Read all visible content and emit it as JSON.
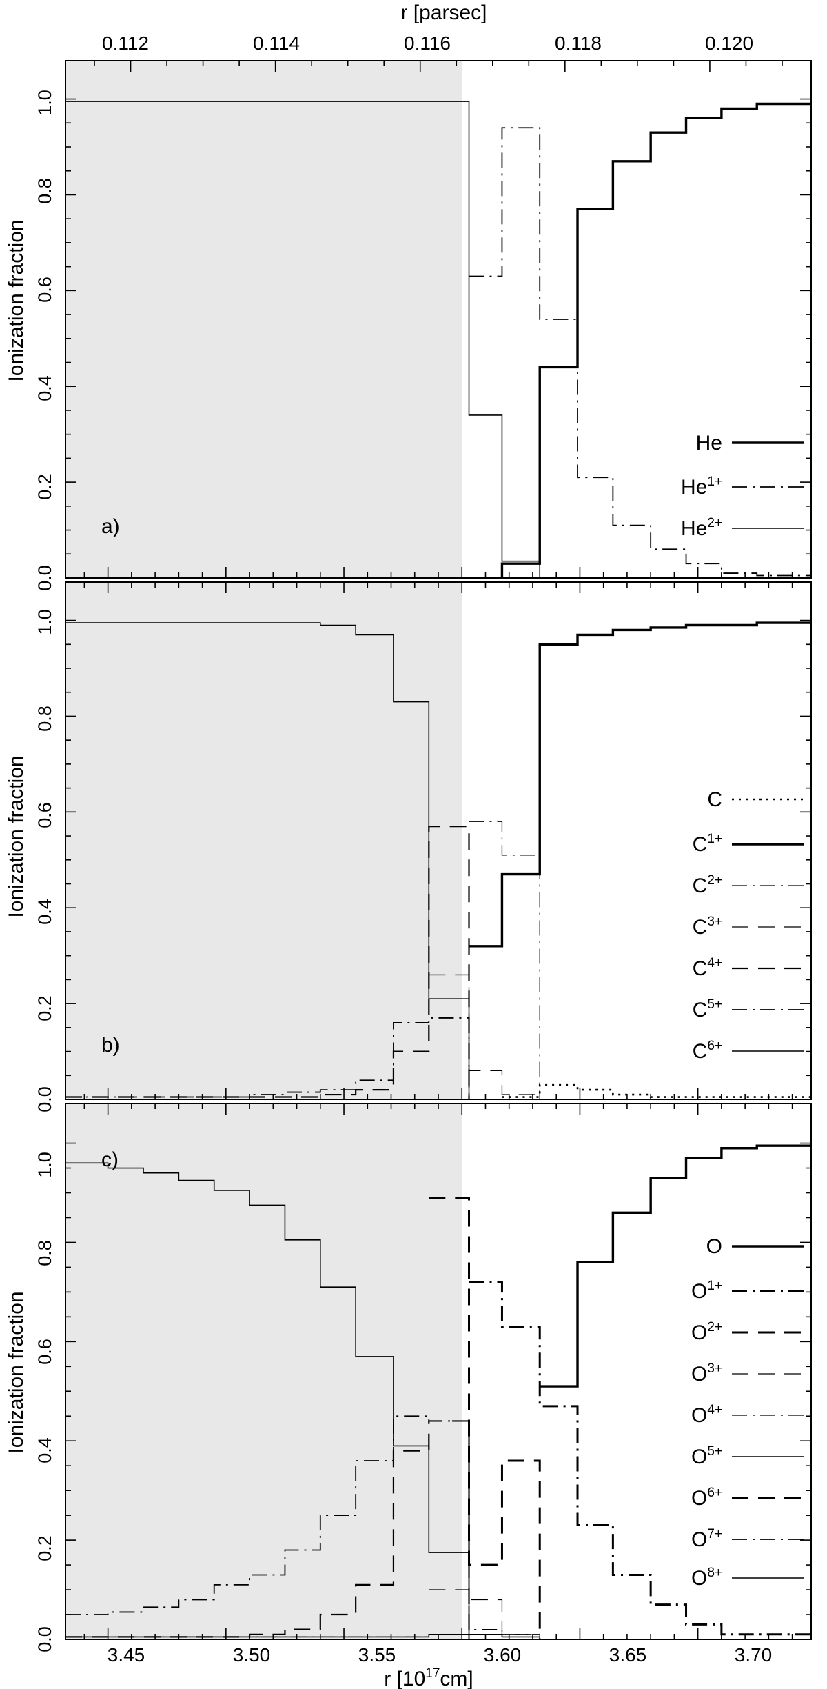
{
  "figure": {
    "top_axis_label": "r [parsec]",
    "top_ticks": [
      "0.112",
      "0.114",
      "0.116",
      "0.118",
      "0.120"
    ],
    "bottom_axis_label_main": "r [10",
    "bottom_axis_label_sup": "17",
    "bottom_axis_label_tail": "cm]",
    "bottom_ticks": [
      "3.45",
      "3.50",
      "3.55",
      "3.60",
      "3.65",
      "3.70"
    ],
    "y_label": "Ionization fraction",
    "y_ticks": [
      "0.0",
      "0.2",
      "0.4",
      "0.6",
      "0.8",
      "1.0"
    ],
    "shade_color": "#e8e8e8"
  },
  "chart_data": [
    {
      "type": "line",
      "panel_label": "a)",
      "xlabel": "r [10^17 cm]",
      "ylabel": "Ionization fraction",
      "x_top_label": "r [parsec]",
      "xlim": [
        3.432,
        3.748
      ],
      "ylim": [
        0.0,
        1.08
      ],
      "shaded_region": [
        3.432,
        3.6
      ],
      "legend_position": "bottom-right",
      "series": [
        {
          "base": "He",
          "sup": "",
          "style": "solid-thick",
          "x": [
            3.603,
            3.617,
            3.633,
            3.649,
            3.664,
            3.68,
            3.695,
            3.71,
            3.725,
            3.748
          ],
          "y": [
            0.0,
            0.03,
            0.44,
            0.77,
            0.87,
            0.93,
            0.96,
            0.98,
            0.99,
            0.99
          ]
        },
        {
          "base": "He",
          "sup": "1+",
          "style": "dashdot",
          "x": [
            3.603,
            3.617,
            3.633,
            3.649,
            3.664,
            3.68,
            3.695,
            3.71,
            3.725,
            3.748
          ],
          "y": [
            0.63,
            0.94,
            0.54,
            0.21,
            0.11,
            0.06,
            0.03,
            0.01,
            0.005,
            0.005
          ]
        },
        {
          "base": "He",
          "sup": "2+",
          "style": "solid-thin",
          "x": [
            3.432,
            3.603,
            3.617,
            3.633
          ],
          "y": [
            0.995,
            0.34,
            0.035,
            0.0
          ]
        }
      ]
    },
    {
      "type": "line",
      "panel_label": "b)",
      "xlabel": "r [10^17 cm]",
      "ylabel": "Ionization fraction",
      "x_top_label": "r [parsec]",
      "xlim": [
        3.432,
        3.748
      ],
      "ylim": [
        0.0,
        1.08
      ],
      "shaded_region": [
        3.432,
        3.6
      ],
      "legend_position": "middle-right",
      "series": [
        {
          "base": "C",
          "sup": "",
          "style": "dotted",
          "x": [
            3.617,
            3.633,
            3.649,
            3.664,
            3.68,
            3.748
          ],
          "y": [
            0.005,
            0.03,
            0.02,
            0.01,
            0.005,
            0.005
          ]
        },
        {
          "base": "C",
          "sup": "1+",
          "style": "solid-thick",
          "x": [
            3.603,
            3.617,
            3.633,
            3.649,
            3.664,
            3.68,
            3.695,
            3.71,
            3.725,
            3.748
          ],
          "y": [
            0.32,
            0.47,
            0.95,
            0.97,
            0.98,
            0.985,
            0.99,
            0.99,
            0.995,
            0.995
          ]
        },
        {
          "base": "C",
          "sup": "2+",
          "style": "dashdot-thin",
          "x": [
            3.603,
            3.617,
            3.633,
            3.748
          ],
          "y": [
            0.58,
            0.51,
            0.0,
            0.0
          ]
        },
        {
          "base": "C",
          "sup": "3+",
          "style": "dashed-thin",
          "x": [
            3.586,
            3.603,
            3.617,
            3.633
          ],
          "y": [
            0.26,
            0.06,
            0.01,
            0.0
          ]
        },
        {
          "base": "C",
          "sup": "4+",
          "style": "dashed",
          "x": [
            3.432,
            3.54,
            3.555,
            3.571,
            3.586,
            3.603
          ],
          "y": [
            0.005,
            0.01,
            0.02,
            0.1,
            0.57,
            0.0
          ]
        },
        {
          "base": "C",
          "sup": "5+",
          "style": "dashdot",
          "x": [
            3.432,
            3.51,
            3.525,
            3.54,
            3.555,
            3.571,
            3.586,
            3.603
          ],
          "y": [
            0.005,
            0.01,
            0.015,
            0.02,
            0.04,
            0.16,
            0.17,
            0.0
          ]
        },
        {
          "base": "C",
          "sup": "6+",
          "style": "solid-thin",
          "x": [
            3.432,
            3.54,
            3.555,
            3.571,
            3.586,
            3.603
          ],
          "y": [
            0.995,
            0.99,
            0.97,
            0.83,
            0.21,
            0.0
          ]
        }
      ]
    },
    {
      "type": "line",
      "panel_label": "c)",
      "xlabel": "r [10^17 cm]",
      "ylabel": "Ionization fraction",
      "x_top_label": "r [parsec]",
      "xlim": [
        3.432,
        3.748
      ],
      "ylim": [
        0.0,
        1.08
      ],
      "shaded_region": [
        3.432,
        3.6
      ],
      "legend_position": "right",
      "series": [
        {
          "base": "O",
          "sup": "",
          "style": "solid-thick",
          "x": [
            3.633,
            3.649,
            3.664,
            3.68,
            3.695,
            3.71,
            3.725,
            3.748
          ],
          "y": [
            0.51,
            0.76,
            0.86,
            0.93,
            0.97,
            0.99,
            0.995,
            0.995
          ]
        },
        {
          "base": "O",
          "sup": "1+",
          "style": "dashdot-thick",
          "x": [
            3.603,
            3.617,
            3.633,
            3.649,
            3.664,
            3.68,
            3.695,
            3.71,
            3.748
          ],
          "y": [
            0.72,
            0.63,
            0.47,
            0.23,
            0.13,
            0.07,
            0.03,
            0.01,
            0.01
          ]
        },
        {
          "base": "O",
          "sup": "2+",
          "style": "dashed-thick",
          "x": [
            3.586,
            3.603,
            3.617,
            3.633
          ],
          "y": [
            0.89,
            0.15,
            0.36,
            0.0
          ]
        },
        {
          "base": "O",
          "sup": "3+",
          "style": "dashed-thin",
          "x": [
            3.586,
            3.603,
            3.617,
            3.633
          ],
          "y": [
            0.1,
            0.08,
            0.01,
            0.0
          ]
        },
        {
          "base": "O",
          "sup": "4+",
          "style": "dashdot-thin",
          "x": [
            3.432,
            3.586,
            3.603,
            3.617,
            3.633
          ],
          "y": [
            0.005,
            0.01,
            0.02,
            0.01,
            0.0
          ]
        },
        {
          "base": "O",
          "sup": "5+",
          "style": "solid-thin",
          "x": [
            3.432,
            3.586,
            3.603,
            3.617,
            3.633
          ],
          "y": [
            0.005,
            0.01,
            0.01,
            0.005,
            0.0
          ]
        },
        {
          "base": "O",
          "sup": "6+",
          "style": "dashed",
          "x": [
            3.432,
            3.48,
            3.51,
            3.525,
            3.54,
            3.555,
            3.571,
            3.586,
            3.603
          ],
          "y": [
            0.005,
            0.005,
            0.01,
            0.02,
            0.05,
            0.11,
            0.38,
            0.44,
            0.0
          ]
        },
        {
          "base": "O",
          "sup": "7+",
          "style": "dashdot",
          "x": [
            3.432,
            3.45,
            3.465,
            3.48,
            3.495,
            3.51,
            3.525,
            3.54,
            3.555,
            3.571,
            3.586,
            3.603
          ],
          "y": [
            0.05,
            0.055,
            0.065,
            0.08,
            0.11,
            0.13,
            0.18,
            0.25,
            0.36,
            0.45,
            0.44,
            0.0
          ]
        },
        {
          "base": "O",
          "sup": "8+",
          "style": "solid-thin",
          "x": [
            3.432,
            3.45,
            3.465,
            3.48,
            3.495,
            3.51,
            3.525,
            3.54,
            3.555,
            3.571,
            3.586,
            3.603
          ],
          "y": [
            0.96,
            0.95,
            0.94,
            0.925,
            0.905,
            0.875,
            0.805,
            0.71,
            0.57,
            0.39,
            0.175,
            0.0
          ]
        }
      ]
    }
  ]
}
